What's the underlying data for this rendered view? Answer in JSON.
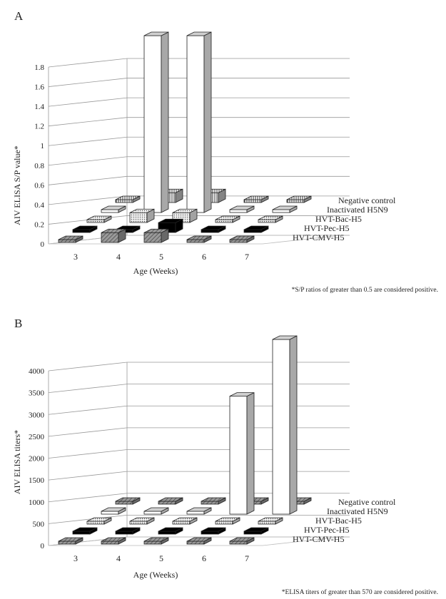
{
  "chart_data": [
    {
      "type": "bar",
      "panel": "A",
      "ylabel": "AIV ELISA S/P value*",
      "xlabel": "Age (Weeks)",
      "ylim": [
        0,
        1.8
      ],
      "yticks": [
        "0",
        "0.2",
        "0.4",
        "0.6",
        "0.8",
        "1",
        "1.2",
        "1.4",
        "1.6",
        "1.8"
      ],
      "categories": [
        "3",
        "4",
        "5",
        "6",
        "7"
      ],
      "series": [
        {
          "name": "HVT-CMV-H5",
          "values": [
            0,
            0.1,
            0.1,
            0,
            0
          ],
          "color": "#8a8a8a",
          "pattern": "diag"
        },
        {
          "name": "HVT-Pec-H5",
          "values": [
            0,
            0,
            0.1,
            0,
            0
          ],
          "color": "#000000",
          "pattern": "solid"
        },
        {
          "name": "HVT-Bac-H5",
          "values": [
            0,
            0.1,
            0.1,
            0,
            0
          ],
          "color": "#d8d8d8",
          "pattern": "dots"
        },
        {
          "name": "Inactivated H5N9",
          "values": [
            0,
            1.8,
            1.8,
            0,
            0
          ],
          "color": "#ffffff",
          "pattern": "none"
        },
        {
          "name": "Negative control",
          "values": [
            0,
            0.1,
            0.1,
            0,
            0
          ],
          "color": "#ffffff",
          "pattern": "vert"
        }
      ],
      "note": "*S/P ratios of greater than 0.5 are considered positive."
    },
    {
      "type": "bar",
      "panel": "B",
      "ylabel": "AIV ELISA titers*",
      "xlabel": "Age (Weeks)",
      "ylim": [
        0,
        4000
      ],
      "yticks": [
        "0",
        "500",
        "1000",
        "1500",
        "2000",
        "2500",
        "3000",
        "3500",
        "4000"
      ],
      "categories": [
        "3",
        "4",
        "5",
        "6",
        "7"
      ],
      "series": [
        {
          "name": "HVT-CMV-H5",
          "values": [
            0,
            0,
            0,
            0,
            0
          ],
          "color": "#8a8a8a",
          "pattern": "diag"
        },
        {
          "name": "HVT-Pec-H5",
          "values": [
            0,
            0,
            0,
            0,
            0
          ],
          "color": "#000000",
          "pattern": "solid"
        },
        {
          "name": "HVT-Bac-H5",
          "values": [
            0,
            0,
            0,
            0,
            0
          ],
          "color": "#d8d8d8",
          "pattern": "dots"
        },
        {
          "name": "Inactivated H5N9",
          "values": [
            0,
            0,
            0,
            2700,
            4000
          ],
          "color": "#ffffff",
          "pattern": "none"
        },
        {
          "name": "Negative control",
          "values": [
            0,
            0,
            0,
            0,
            0
          ],
          "color": "#8a8a8a",
          "pattern": "diag"
        }
      ],
      "note": "*ELISA titers of greater than 570 are considered positive."
    }
  ]
}
